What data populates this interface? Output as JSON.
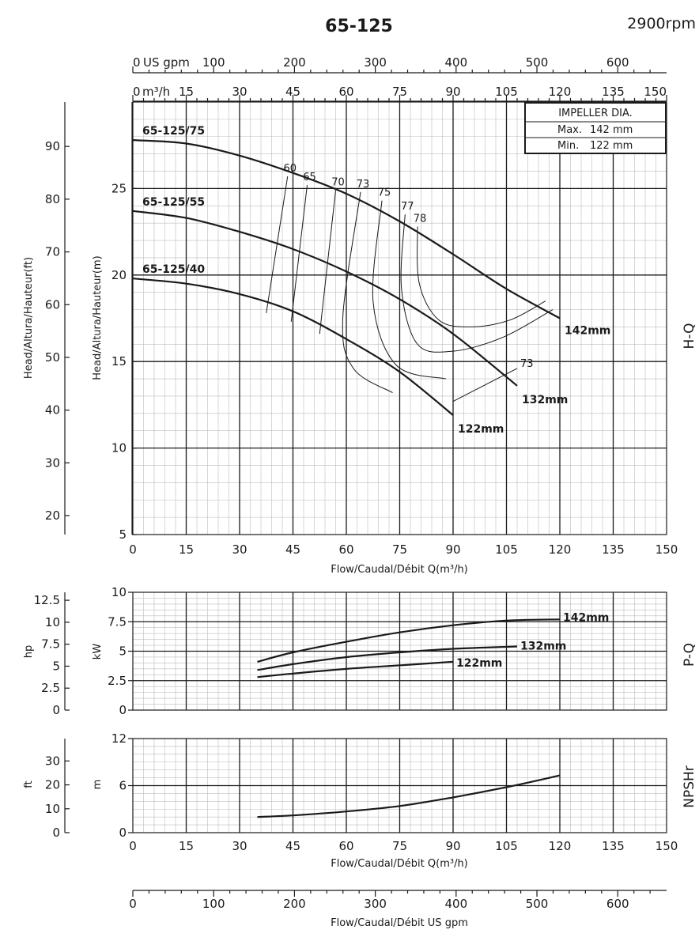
{
  "header": {
    "model": "65-125",
    "speed": "2900rpm"
  },
  "top_axes": {
    "usgpm_unit": "US gpm",
    "usgpm_ticks": [
      "0",
      "100",
      "200",
      "300",
      "400",
      "500",
      "600"
    ],
    "m3h_unit": "m³/h",
    "m3h_ticks": [
      "0",
      "15",
      "30",
      "45",
      "60",
      "75",
      "90",
      "105",
      "120",
      "135",
      "150"
    ]
  },
  "impeller_box": {
    "title": "IMPELLER DIA.",
    "max_label": "Max.",
    "max_value": "142  mm",
    "min_label": "Min.",
    "min_value": "122  mm"
  },
  "side_labels": {
    "hq": "H-Q",
    "pq": "P-Q",
    "npsh": "NPSHr"
  },
  "bottom_axis": {
    "label": "Flow/Caudal/Débit  US gpm",
    "ticks": [
      "0",
      "100",
      "200",
      "300",
      "400",
      "500",
      "600"
    ]
  },
  "chart_data": [
    {
      "type": "line",
      "name": "H-Q",
      "xlabel": "Flow/Caudal/Débit Q(m³/h)",
      "ylabel": "Head/Altura/Hauteur(m)",
      "ylabel_secondary": "Head/Altura/Hauteur(ft)",
      "xlim": [
        0,
        150
      ],
      "ylim": [
        5,
        30
      ],
      "x_ticks": [
        "0",
        "15",
        "30",
        "45",
        "60",
        "75",
        "90",
        "105",
        "120",
        "135",
        "150"
      ],
      "y_ticks": [
        "5",
        "10",
        "15",
        "20",
        "25"
      ],
      "y2_ticks": [
        "20",
        "30",
        "40",
        "50",
        "60",
        "70",
        "80",
        "90"
      ],
      "grid": true,
      "series": [
        {
          "name": "65-125/75",
          "end_label": "142mm",
          "x": [
            0,
            15,
            30,
            45,
            60,
            75,
            90,
            105,
            120
          ],
          "y": [
            27.8,
            27.6,
            26.9,
            25.9,
            24.7,
            23.1,
            21.2,
            19.2,
            17.5
          ]
        },
        {
          "name": "65-125/55",
          "end_label": "132mm",
          "x": [
            0,
            15,
            30,
            45,
            60,
            75,
            90,
            108
          ],
          "y": [
            23.7,
            23.3,
            22.5,
            21.5,
            20.2,
            18.6,
            16.6,
            13.6
          ]
        },
        {
          "name": "65-125/40",
          "end_label": "122mm",
          "x": [
            0,
            15,
            30,
            45,
            60,
            75,
            90
          ],
          "y": [
            19.8,
            19.5,
            18.9,
            17.9,
            16.3,
            14.4,
            11.9
          ]
        }
      ],
      "efficiency_lines": [
        {
          "label": "60",
          "x": [
            43.5,
            37.5
          ],
          "y": [
            25.7,
            17.8
          ]
        },
        {
          "label": "65",
          "x": [
            49,
            44.5
          ],
          "y": [
            25.2,
            17.3
          ]
        },
        {
          "label": "70",
          "x": [
            57,
            52.5
          ],
          "y": [
            24.9,
            16.6
          ]
        },
        {
          "label": "73",
          "x": [
            64,
            59,
            62,
            73
          ],
          "y": [
            24.8,
            17.5,
            14.6,
            13.2
          ]
        },
        {
          "label": "75",
          "x": [
            70,
            67.5,
            74,
            88
          ],
          "y": [
            24.3,
            18.5,
            14.8,
            14.0
          ]
        },
        {
          "label": "77",
          "x": [
            76.5,
            75.5,
            80,
            90,
            104,
            118
          ],
          "y": [
            23.5,
            19.2,
            16.0,
            15.6,
            16.4,
            18.0
          ]
        },
        {
          "label": "78",
          "x": [
            80,
            80.5,
            86,
            95,
            106,
            116
          ],
          "y": [
            22.8,
            19.5,
            17.4,
            17.0,
            17.4,
            18.5
          ]
        },
        {
          "label": "73",
          "x": [
            90,
            108
          ],
          "y": [
            12.7,
            14.6
          ]
        }
      ]
    },
    {
      "type": "line",
      "name": "P-Q",
      "xlim": [
        0,
        150
      ],
      "ylim": [
        0,
        10
      ],
      "ylabel": "kW",
      "ylabel_secondary": "hp",
      "y_ticks": [
        "0",
        "2.5",
        "5",
        "7.5",
        "10"
      ],
      "y2_ticks": [
        "0",
        "2.5",
        "5",
        "7.5",
        "10",
        "12.5"
      ],
      "grid": true,
      "series": [
        {
          "name": "142mm",
          "x": [
            35,
            45,
            60,
            75,
            90,
            105,
            120
          ],
          "y": [
            4.1,
            4.9,
            5.8,
            6.6,
            7.2,
            7.6,
            7.7
          ]
        },
        {
          "name": "132mm",
          "x": [
            35,
            45,
            60,
            75,
            90,
            108
          ],
          "y": [
            3.4,
            3.9,
            4.5,
            4.9,
            5.2,
            5.4
          ]
        },
        {
          "name": "122mm",
          "x": [
            35,
            45,
            60,
            75,
            90
          ],
          "y": [
            2.8,
            3.1,
            3.5,
            3.8,
            4.1
          ]
        }
      ]
    },
    {
      "type": "line",
      "name": "NPSHr",
      "xlabel": "Flow/Caudal/Débit Q(m³/h)",
      "xlim": [
        0,
        150
      ],
      "ylim": [
        0,
        12
      ],
      "ylabel": "m",
      "ylabel_secondary": "ft",
      "x_ticks": [
        "0",
        "15",
        "30",
        "45",
        "60",
        "75",
        "90",
        "105",
        "120",
        "135",
        "150"
      ],
      "y_ticks": [
        "0",
        "6",
        "12"
      ],
      "y2_ticks": [
        "0",
        "10",
        "20",
        "30"
      ],
      "grid": true,
      "series": [
        {
          "name": "NPSHr",
          "x": [
            35,
            45,
            60,
            75,
            90,
            105,
            120
          ],
          "y": [
            2.0,
            2.2,
            2.7,
            3.4,
            4.5,
            5.8,
            7.3
          ]
        }
      ]
    }
  ]
}
